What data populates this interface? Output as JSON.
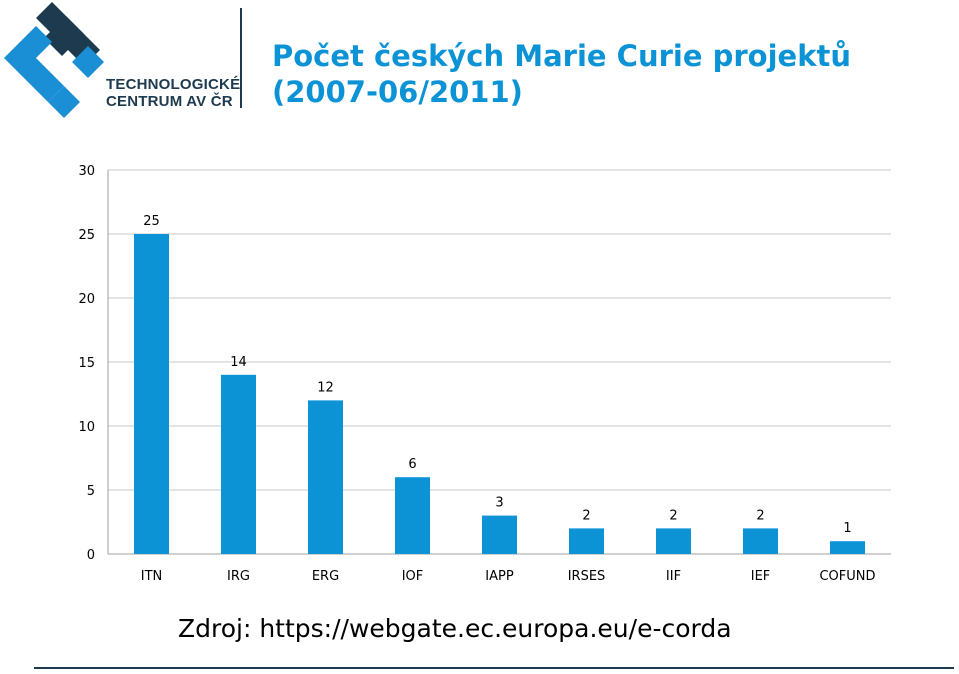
{
  "logo": {
    "line1": "TECHNOLOGICKÉ",
    "line2": "CENTRUM AV ČR"
  },
  "title": {
    "line1": "Počet českých Marie Curie projektů",
    "line2": "(2007-06/2011)"
  },
  "chart_data": {
    "type": "bar",
    "categories": [
      "ITN",
      "IRG",
      "ERG",
      "IOF",
      "IAPP",
      "IRSES",
      "IIF",
      "IEF",
      "COFUND"
    ],
    "values": [
      25,
      14,
      12,
      6,
      3,
      2,
      2,
      2,
      1
    ],
    "ylim": [
      0,
      30
    ],
    "yticks": [
      0,
      5,
      10,
      15,
      20,
      25,
      30
    ],
    "grid": true,
    "bar_color": "#0b93d6",
    "grid_color": "#c8c8c8"
  },
  "source": "Zdroj: https://webgate.ec.europa.eu/e-corda",
  "colors": {
    "title": "#0b93d6",
    "logo_dark": "#1e3a4f",
    "logo_blue": "#1a8fd6"
  }
}
